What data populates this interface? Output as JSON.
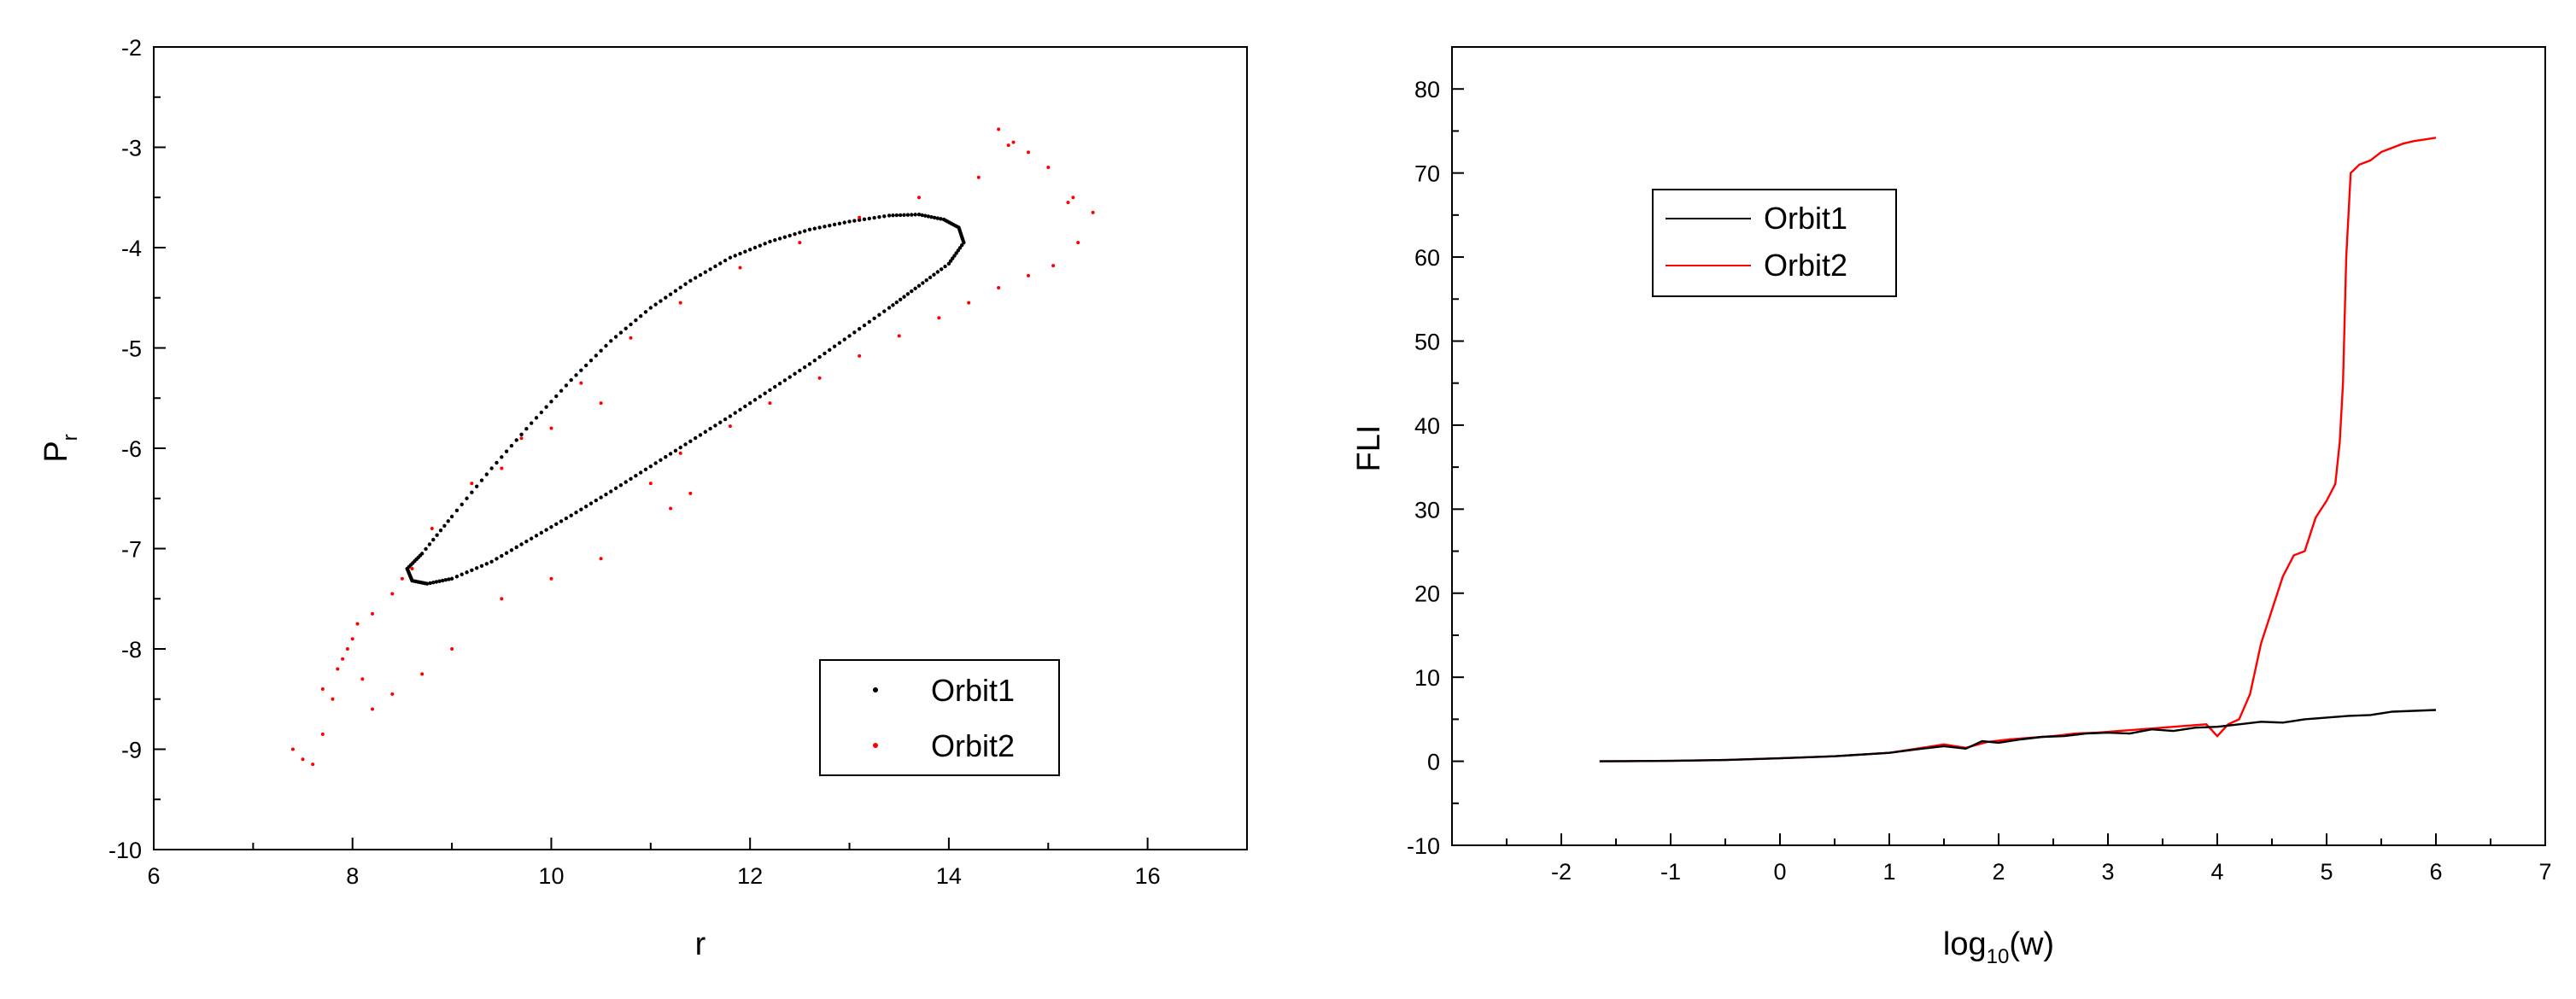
{
  "chart_data": [
    {
      "type": "scatter",
      "xlabel": "r",
      "ylabel": "P",
      "ylabel_sub": "r",
      "xlim": [
        6,
        17
      ],
      "ylim": [
        -10,
        -2
      ],
      "xticks": [
        "6",
        "8",
        "10",
        "12",
        "14",
        "16"
      ],
      "yticks": [
        "-2",
        "-3",
        "-4",
        "-5",
        "-6",
        "-7",
        "-8",
        "-9",
        "-10"
      ],
      "legend_position": "bottom-right",
      "colors": {
        "Orbit1": "#000000",
        "Orbit2": "#ff0000"
      },
      "series": [
        {
          "name": "Orbit1",
          "points": [
            [
              14.15,
              -3.95
            ],
            [
              14.1,
              -3.8
            ],
            [
              13.95,
              -3.72
            ],
            [
              13.7,
              -3.67
            ],
            [
              13.4,
              -3.68
            ],
            [
              13.0,
              -3.74
            ],
            [
              12.6,
              -3.82
            ],
            [
              12.2,
              -3.94
            ],
            [
              11.8,
              -4.1
            ],
            [
              11.4,
              -4.33
            ],
            [
              11.0,
              -4.6
            ],
            [
              10.6,
              -4.93
            ],
            [
              10.2,
              -5.32
            ],
            [
              9.8,
              -5.75
            ],
            [
              9.4,
              -6.2
            ],
            [
              9.0,
              -6.68
            ],
            [
              8.7,
              -7.05
            ],
            [
              8.55,
              -7.2
            ],
            [
              8.6,
              -7.32
            ],
            [
              8.75,
              -7.35
            ],
            [
              9.0,
              -7.3
            ],
            [
              9.4,
              -7.13
            ],
            [
              9.8,
              -6.9
            ],
            [
              10.2,
              -6.67
            ],
            [
              10.6,
              -6.43
            ],
            [
              11.0,
              -6.18
            ],
            [
              11.4,
              -5.93
            ],
            [
              11.8,
              -5.68
            ],
            [
              12.2,
              -5.42
            ],
            [
              12.6,
              -5.16
            ],
            [
              13.0,
              -4.88
            ],
            [
              13.4,
              -4.6
            ],
            [
              13.7,
              -4.38
            ],
            [
              14.0,
              -4.16
            ],
            [
              14.15,
              -3.95
            ]
          ]
        },
        {
          "name": "Orbit2",
          "points": [
            [
              7.5,
              -9.1
            ],
            [
              7.6,
              -9.15
            ],
            [
              7.4,
              -9.0
            ],
            [
              7.7,
              -8.85
            ],
            [
              7.8,
              -8.5
            ],
            [
              7.7,
              -8.4
            ],
            [
              7.85,
              -8.2
            ],
            [
              7.9,
              -8.1
            ],
            [
              7.95,
              -8.0
            ],
            [
              8.0,
              -7.9
            ],
            [
              8.05,
              -7.75
            ],
            [
              8.1,
              -8.3
            ],
            [
              8.2,
              -8.6
            ],
            [
              8.4,
              -8.45
            ],
            [
              8.7,
              -8.25
            ],
            [
              9.0,
              -8.0
            ],
            [
              8.2,
              -7.65
            ],
            [
              8.4,
              -7.45
            ],
            [
              8.5,
              -7.3
            ],
            [
              8.6,
              -7.2
            ],
            [
              9.5,
              -7.5
            ],
            [
              10.0,
              -7.3
            ],
            [
              10.5,
              -7.1
            ],
            [
              8.8,
              -6.8
            ],
            [
              9.2,
              -6.35
            ],
            [
              9.7,
              -5.9
            ],
            [
              10.3,
              -5.35
            ],
            [
              10.8,
              -4.9
            ],
            [
              11.3,
              -4.55
            ],
            [
              11.9,
              -4.2
            ],
            [
              12.5,
              -3.95
            ],
            [
              13.1,
              -3.7
            ],
            [
              13.7,
              -3.5
            ],
            [
              14.3,
              -3.3
            ],
            [
              14.6,
              -2.98
            ],
            [
              14.5,
              -2.82
            ],
            [
              14.8,
              -3.05
            ],
            [
              15.0,
              -3.2
            ],
            [
              15.25,
              -3.5
            ],
            [
              15.45,
              -3.65
            ],
            [
              15.3,
              -3.95
            ],
            [
              15.05,
              -4.18
            ],
            [
              14.8,
              -4.28
            ],
            [
              14.5,
              -4.4
            ],
            [
              14.2,
              -4.55
            ],
            [
              13.9,
              -4.7
            ],
            [
              13.5,
              -4.88
            ],
            [
              13.1,
              -5.08
            ],
            [
              12.7,
              -5.3
            ],
            [
              12.2,
              -5.55
            ],
            [
              11.8,
              -5.78
            ],
            [
              11.3,
              -6.05
            ],
            [
              11.0,
              -6.35
            ],
            [
              11.2,
              -6.6
            ],
            [
              11.4,
              -6.45
            ],
            [
              10.5,
              -5.55
            ],
            [
              10.0,
              -5.8
            ],
            [
              9.5,
              -6.2
            ],
            [
              15.2,
              -3.55
            ],
            [
              14.65,
              -2.95
            ]
          ]
        }
      ],
      "legend": {
        "orbit1_label": "Orbit1",
        "orbit2_label": "Orbit2"
      },
      "title": ""
    },
    {
      "type": "line",
      "xlabel_main": "log",
      "xlabel_sub": "10",
      "xlabel_tail": "(w)",
      "ylabel": "FLI",
      "xlim": [
        -3,
        7
      ],
      "ylim": [
        -10,
        85
      ],
      "xticks": [
        "-2",
        "-1",
        "0",
        "1",
        "2",
        "3",
        "4",
        "5",
        "6",
        "7"
      ],
      "yticks": [
        "80",
        "70",
        "60",
        "50",
        "40",
        "30",
        "20",
        "10",
        "0",
        "-10"
      ],
      "legend_position": "top-left",
      "colors": {
        "Orbit1": "#000000",
        "Orbit2": "#ff0000"
      },
      "series": [
        {
          "name": "Orbit1",
          "points": [
            [
              -1.65,
              0.0
            ],
            [
              -1.0,
              0.05
            ],
            [
              -0.5,
              0.15
            ],
            [
              0.0,
              0.35
            ],
            [
              0.5,
              0.6
            ],
            [
              1.0,
              1.0
            ],
            [
              1.3,
              1.5
            ],
            [
              1.5,
              1.8
            ],
            [
              1.7,
              1.5
            ],
            [
              1.85,
              2.4
            ],
            [
              2.0,
              2.2
            ],
            [
              2.2,
              2.6
            ],
            [
              2.4,
              2.9
            ],
            [
              2.6,
              3.0
            ],
            [
              2.8,
              3.3
            ],
            [
              3.0,
              3.4
            ],
            [
              3.2,
              3.3
            ],
            [
              3.4,
              3.8
            ],
            [
              3.6,
              3.6
            ],
            [
              3.8,
              4.0
            ],
            [
              4.0,
              4.1
            ],
            [
              4.2,
              4.4
            ],
            [
              4.4,
              4.7
            ],
            [
              4.6,
              4.6
            ],
            [
              4.8,
              5.0
            ],
            [
              5.0,
              5.2
            ],
            [
              5.2,
              5.4
            ],
            [
              5.4,
              5.5
            ],
            [
              5.6,
              5.9
            ],
            [
              5.8,
              6.0
            ],
            [
              6.0,
              6.1
            ]
          ]
        },
        {
          "name": "Orbit2",
          "points": [
            [
              -1.65,
              0.0
            ],
            [
              -1.0,
              0.05
            ],
            [
              -0.5,
              0.15
            ],
            [
              0.0,
              0.35
            ],
            [
              0.5,
              0.6
            ],
            [
              1.0,
              1.0
            ],
            [
              1.3,
              1.6
            ],
            [
              1.5,
              2.0
            ],
            [
              1.7,
              1.6
            ],
            [
              1.9,
              2.3
            ],
            [
              2.1,
              2.6
            ],
            [
              2.3,
              2.8
            ],
            [
              2.5,
              3.0
            ],
            [
              2.7,
              3.3
            ],
            [
              2.9,
              3.4
            ],
            [
              3.1,
              3.6
            ],
            [
              3.3,
              3.8
            ],
            [
              3.5,
              4.0
            ],
            [
              3.7,
              4.2
            ],
            [
              3.9,
              4.4
            ],
            [
              4.0,
              3.0
            ],
            [
              4.1,
              4.4
            ],
            [
              4.2,
              5.0
            ],
            [
              4.3,
              8.0
            ],
            [
              4.4,
              14.0
            ],
            [
              4.5,
              18.0
            ],
            [
              4.6,
              22.0
            ],
            [
              4.7,
              24.5
            ],
            [
              4.8,
              25.0
            ],
            [
              4.9,
              29.0
            ],
            [
              5.0,
              31.0
            ],
            [
              5.08,
              33.0
            ],
            [
              5.12,
              38.0
            ],
            [
              5.15,
              45.0
            ],
            [
              5.18,
              60.0
            ],
            [
              5.22,
              70.0
            ],
            [
              5.3,
              71.0
            ],
            [
              5.4,
              71.5
            ],
            [
              5.5,
              72.5
            ],
            [
              5.6,
              73.0
            ],
            [
              5.7,
              73.5
            ],
            [
              5.8,
              73.8
            ],
            [
              5.9,
              74.0
            ],
            [
              6.0,
              74.2
            ]
          ]
        }
      ],
      "legend": {
        "orbit1_label": "Orbit1",
        "orbit2_label": "Orbit2"
      },
      "title": ""
    }
  ]
}
